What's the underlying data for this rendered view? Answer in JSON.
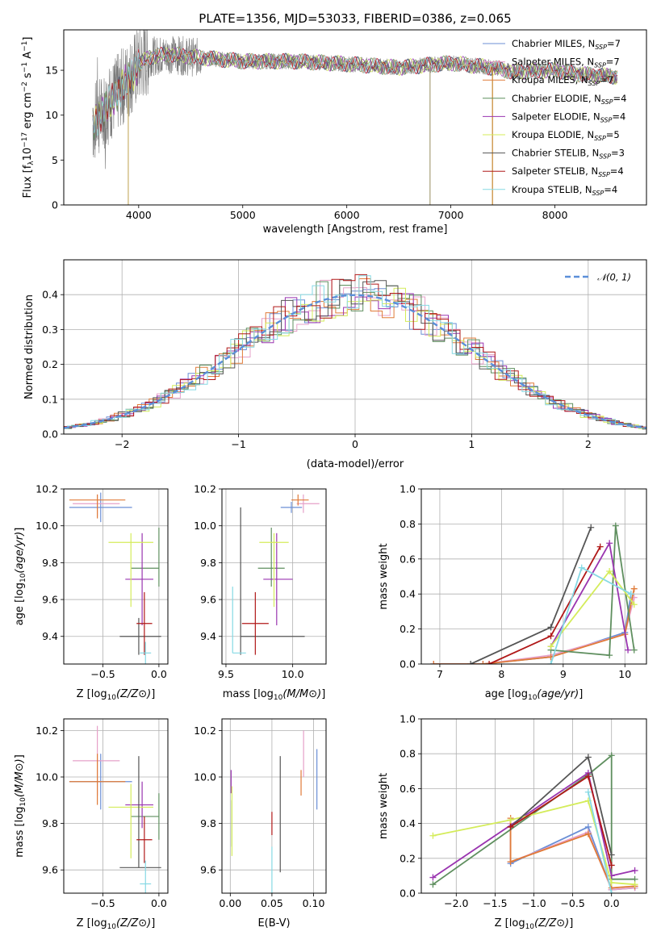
{
  "title": "PLATE=1356, MJD=53033, FIBERID=0386, z=0.065",
  "colors": {
    "chabrier_miles": "#6b8fd6",
    "salpeter_miles": "#e6a0c8",
    "kroupa_miles": "#e07b39",
    "chabrier_elodie": "#5f8f5f",
    "salpeter_elodie": "#9a35b0",
    "kroupa_elodie": "#d4ec5a",
    "chabrier_stelib": "#555555",
    "salpeter_stelib": "#b01818",
    "kroupa_stelib": "#86d9e4"
  },
  "chart_data": [
    {
      "id": "spectrum",
      "type": "line",
      "xlabel": "wavelength [Angstrom, rest frame]",
      "ylabel": "Flux [f_λ10^-17 erg cm^-2 s^-1 A^-1]",
      "xlim": [
        3280,
        8880
      ],
      "ylim": [
        0,
        19.5
      ],
      "xticks": [
        4000,
        5000,
        6000,
        7000,
        8000
      ],
      "yticks": [
        0,
        5,
        10,
        15
      ],
      "grid": false,
      "legend_position": "top-right",
      "legend": [
        {
          "label": "Chabrier MILES, N",
          "sub": "SSP",
          "eq": "=7",
          "color_key": "chabrier_miles"
        },
        {
          "label": "Salpeter MILES, N",
          "sub": "SSP",
          "eq": "=7",
          "color_key": "salpeter_miles"
        },
        {
          "label": "Kroupa MILES, N",
          "sub": "SSP",
          "eq": "=7",
          "color_key": "kroupa_miles"
        },
        {
          "label": "Chabrier ELODIE, N",
          "sub": "SSP",
          "eq": "=4",
          "color_key": "chabrier_elodie"
        },
        {
          "label": "Salpeter ELODIE, N",
          "sub": "SSP",
          "eq": "=4",
          "color_key": "salpeter_elodie"
        },
        {
          "label": "Kroupa ELODIE, N",
          "sub": "SSP",
          "eq": "=5",
          "color_key": "kroupa_elodie"
        },
        {
          "label": "Chabrier STELIB, N",
          "sub": "SSP",
          "eq": "=3",
          "color_key": "chabrier_stelib"
        },
        {
          "label": "Salpeter STELIB, N",
          "sub": "SSP",
          "eq": "=4",
          "color_key": "salpeter_stelib"
        },
        {
          "label": "Kroupa STELIB, N",
          "sub": "SSP",
          "eq": "=4",
          "color_key": "kroupa_stelib"
        }
      ],
      "observed_range": [
        3560,
        8600
      ],
      "continuum": {
        "x": [
          3560,
          3700,
          3900,
          4000,
          4100,
          4300,
          4500,
          5000,
          5500,
          6000,
          6500,
          7000,
          7400,
          7600,
          8000,
          8200,
          8600
        ],
        "y": [
          9,
          11,
          14,
          15.5,
          16.5,
          16.8,
          16.5,
          16.0,
          16.0,
          15.7,
          15.3,
          15.8,
          15.3,
          14.8,
          15.0,
          14.6,
          14.3
        ]
      },
      "spikes_to_zero": [
        3900,
        6800,
        7400
      ]
    },
    {
      "id": "residuals",
      "type": "line",
      "xlabel": "(data-model)/error",
      "ylabel": "Normed distribution",
      "xlim": [
        -2.5,
        2.5
      ],
      "ylim": [
        0,
        0.5
      ],
      "xticks": [
        -2,
        -1,
        0,
        1,
        2
      ],
      "yticks": [
        0.0,
        0.1,
        0.2,
        0.3,
        0.4
      ],
      "grid": true,
      "legend_position": "top-right",
      "legend": [
        {
          "label": "𝒩(0, 1)",
          "color": "#5b8fd9"
        }
      ],
      "gaussian": {
        "mean": 0,
        "sigma": 1
      }
    },
    {
      "id": "age_vs_Z",
      "type": "scatter",
      "xlabel": "Z [log10(Z/Z⊙)]",
      "ylabel": "age [log10(age/yr)]",
      "xlim": [
        -0.85,
        0.08
      ],
      "ylim": [
        9.25,
        10.2
      ],
      "xticks": [
        -0.5,
        0.0
      ],
      "yticks": [
        9.4,
        9.6,
        9.8,
        10.0,
        10.2
      ],
      "grid": true,
      "points": [
        {
          "color_key": "chabrier_miles",
          "x": -0.52,
          "xerr": [
            0.28,
            0.28
          ],
          "y": 10.1,
          "yerr": [
            0.08,
            0.08
          ]
        },
        {
          "color_key": "salpeter_miles",
          "x": -0.55,
          "xerr": [
            0.22,
            0.2
          ],
          "y": 10.12,
          "yerr": [
            0.07,
            0.05
          ]
        },
        {
          "color_key": "kroupa_miles",
          "x": -0.55,
          "xerr": [
            0.25,
            0.25
          ],
          "y": 10.14,
          "yerr": [
            0.1,
            0.03
          ]
        },
        {
          "color_key": "chabrier_elodie",
          "x": 0.0,
          "xerr": [
            0.25,
            0.0
          ],
          "y": 9.77,
          "yerr": [
            0.1,
            0.22
          ]
        },
        {
          "color_key": "salpeter_elodie",
          "x": -0.15,
          "xerr": [
            0.15,
            0.1
          ],
          "y": 9.71,
          "yerr": [
            0.25,
            0.25
          ]
        },
        {
          "color_key": "kroupa_elodie",
          "x": -0.25,
          "xerr": [
            0.2,
            0.2
          ],
          "y": 9.91,
          "yerr": [
            0.35,
            0.05
          ]
        },
        {
          "color_key": "chabrier_stelib",
          "x": -0.18,
          "xerr": [
            0.17,
            0.2
          ],
          "y": 9.4,
          "yerr": [
            0.1,
            0.1
          ]
        },
        {
          "color_key": "salpeter_stelib",
          "x": -0.13,
          "xerr": [
            0.07,
            0.07
          ],
          "y": 9.47,
          "yerr": [
            0.17,
            0.17
          ]
        },
        {
          "color_key": "kroupa_stelib",
          "x": -0.12,
          "xerr": [
            0.05,
            0.05
          ],
          "y": 9.31,
          "yerr": [
            0.06,
            0.06
          ]
        }
      ]
    },
    {
      "id": "age_vs_mass",
      "type": "scatter",
      "xlabel": "mass [log10(M/M⊙)]",
      "xlim": [
        9.47,
        10.25
      ],
      "ylim": [
        9.25,
        10.2
      ],
      "xticks": [
        9.5,
        10.0
      ],
      "yticks": [
        9.4,
        9.6,
        9.8,
        10.0,
        10.2
      ],
      "grid": true,
      "points": [
        {
          "color_key": "chabrier_miles",
          "x": 9.99,
          "xerr": [
            0.08,
            0.08
          ],
          "y": 10.1,
          "yerr": [
            0.03,
            0.03
          ]
        },
        {
          "color_key": "salpeter_miles",
          "x": 10.08,
          "xerr": [
            0.05,
            0.12
          ],
          "y": 10.12,
          "yerr": [
            0.05,
            0.05
          ]
        },
        {
          "color_key": "kroupa_miles",
          "x": 10.04,
          "xerr": [
            0.05,
            0.08
          ],
          "y": 10.14,
          "yerr": [
            0.03,
            0.03
          ]
        },
        {
          "color_key": "chabrier_elodie",
          "x": 9.84,
          "xerr": [
            0.1,
            0.1
          ],
          "y": 9.77,
          "yerr": [
            0.1,
            0.22
          ]
        },
        {
          "color_key": "salpeter_elodie",
          "x": 9.88,
          "xerr": [
            0.1,
            0.12
          ],
          "y": 9.71,
          "yerr": [
            0.25,
            0.25
          ]
        },
        {
          "color_key": "kroupa_elodie",
          "x": 9.86,
          "xerr": [
            0.11,
            0.11
          ],
          "y": 9.91,
          "yerr": [
            0.35,
            0.05
          ]
        },
        {
          "color_key": "chabrier_stelib",
          "x": 9.61,
          "xerr": [
            0.0,
            0.48
          ],
          "y": 9.4,
          "yerr": [
            0.1,
            0.7
          ]
        },
        {
          "color_key": "salpeter_stelib",
          "x": 9.72,
          "xerr": [
            0.1,
            0.1
          ],
          "y": 9.47,
          "yerr": [
            0.17,
            0.17
          ]
        },
        {
          "color_key": "kroupa_stelib",
          "x": 9.55,
          "xerr": [
            0.0,
            0.1
          ],
          "y": 9.31,
          "yerr": [
            0.0,
            0.36
          ]
        }
      ]
    },
    {
      "id": "weight_vs_age",
      "type": "line",
      "xlabel": "age [log10(age/yr)]",
      "ylabel": "mass weight",
      "xlim": [
        6.7,
        10.35
      ],
      "ylim": [
        0,
        1.0
      ],
      "xticks": [
        7,
        8,
        9,
        10
      ],
      "yticks": [
        0.0,
        0.2,
        0.4,
        0.6,
        0.8,
        1.0
      ],
      "grid": true,
      "series": [
        {
          "color_key": "chabrier_miles",
          "x": [
            6.9,
            7.7,
            8.8,
            10.0,
            10.1
          ],
          "y": [
            0.0,
            0.0,
            0.04,
            0.18,
            0.4
          ]
        },
        {
          "color_key": "salpeter_miles",
          "x": [
            6.9,
            7.7,
            8.8,
            10.0,
            10.15
          ],
          "y": [
            0.0,
            0.0,
            0.05,
            0.17,
            0.38
          ]
        },
        {
          "color_key": "kroupa_miles",
          "x": [
            6.9,
            7.7,
            8.8,
            10.0,
            10.15
          ],
          "y": [
            0.0,
            0.0,
            0.04,
            0.17,
            0.43
          ]
        },
        {
          "color_key": "chabrier_elodie",
          "x": [
            8.8,
            9.75,
            9.85,
            10.15
          ],
          "y": [
            0.08,
            0.05,
            0.79,
            0.08
          ]
        },
        {
          "color_key": "salpeter_elodie",
          "x": [
            8.8,
            9.75,
            10.05
          ],
          "y": [
            0.1,
            0.69,
            0.08
          ]
        },
        {
          "color_key": "kroupa_elodie",
          "x": [
            8.8,
            9.75,
            10.15
          ],
          "y": [
            0.1,
            0.53,
            0.34
          ]
        },
        {
          "color_key": "chabrier_stelib",
          "x": [
            7.5,
            8.8,
            9.45
          ],
          "y": [
            0.0,
            0.21,
            0.78
          ]
        },
        {
          "color_key": "salpeter_stelib",
          "x": [
            7.8,
            8.8,
            9.6
          ],
          "y": [
            0.0,
            0.16,
            0.67
          ]
        },
        {
          "color_key": "kroupa_stelib",
          "x": [
            8.8,
            9.3,
            10.1
          ],
          "y": [
            0.0,
            0.55,
            0.4
          ]
        }
      ]
    },
    {
      "id": "mass_vs_Z",
      "type": "scatter",
      "xlabel": "Z [log10(Z/Z⊙)]",
      "ylabel": "mass [log10(M/M⊙)]",
      "xlim": [
        -0.85,
        0.08
      ],
      "ylim": [
        9.5,
        10.25
      ],
      "xticks": [
        -0.5,
        0.0
      ],
      "yticks": [
        9.6,
        9.8,
        10.0,
        10.2
      ],
      "grid": true,
      "points": [
        {
          "color_key": "chabrier_miles",
          "x": -0.52,
          "xerr": [
            0.28,
            0.28
          ],
          "y": 9.98,
          "yerr": [
            0.12,
            0.12
          ]
        },
        {
          "color_key": "salpeter_miles",
          "x": -0.55,
          "xerr": [
            0.22,
            0.2
          ],
          "y": 10.07,
          "yerr": [
            0.15,
            0.15
          ]
        },
        {
          "color_key": "kroupa_miles",
          "x": -0.55,
          "xerr": [
            0.25,
            0.25
          ],
          "y": 9.98,
          "yerr": [
            0.1,
            0.12
          ]
        },
        {
          "color_key": "chabrier_elodie",
          "x": 0.0,
          "xerr": [
            0.25,
            0.0
          ],
          "y": 9.83,
          "yerr": [
            0.1,
            0.1
          ]
        },
        {
          "color_key": "salpeter_elodie",
          "x": -0.15,
          "xerr": [
            0.15,
            0.1
          ],
          "y": 9.88,
          "yerr": [
            0.1,
            0.1
          ]
        },
        {
          "color_key": "kroupa_elodie",
          "x": -0.25,
          "xerr": [
            0.2,
            0.2
          ],
          "y": 9.87,
          "yerr": [
            0.22,
            0.1
          ]
        },
        {
          "color_key": "chabrier_stelib",
          "x": -0.18,
          "xerr": [
            0.17,
            0.2
          ],
          "y": 9.61,
          "yerr": [
            0.0,
            0.48
          ]
        },
        {
          "color_key": "salpeter_stelib",
          "x": -0.13,
          "xerr": [
            0.07,
            0.07
          ],
          "y": 9.73,
          "yerr": [
            0.1,
            0.1
          ]
        },
        {
          "color_key": "kroupa_stelib",
          "x": -0.12,
          "xerr": [
            0.05,
            0.05
          ],
          "y": 9.54,
          "yerr": [
            0.04,
            0.1
          ]
        }
      ]
    },
    {
      "id": "mass_vs_ebv",
      "type": "scatter",
      "xlabel": "E(B-V)",
      "xlim": [
        -0.01,
        0.115
      ],
      "ylim": [
        9.5,
        10.25
      ],
      "xticks": [
        0.0,
        0.05,
        0.1
      ],
      "xticklabels": [
        "0.00",
        "0.05",
        "0.10"
      ],
      "yticks": [
        9.6,
        9.8,
        10.0,
        10.2
      ],
      "grid": true,
      "points": [
        {
          "color_key": "chabrier_miles",
          "x": 0.104,
          "y": 9.98,
          "yerr": [
            0.12,
            0.14
          ]
        },
        {
          "color_key": "salpeter_miles",
          "x": 0.088,
          "y": 10.1,
          "yerr": [
            0.1,
            0.1
          ]
        },
        {
          "color_key": "kroupa_miles",
          "x": 0.085,
          "y": 9.98,
          "yerr": [
            0.06,
            0.05
          ]
        },
        {
          "color_key": "chabrier_elodie",
          "x": 0.002,
          "y": 9.8,
          "yerr": [
            0.1,
            0.1
          ]
        },
        {
          "color_key": "salpeter_elodie",
          "x": 0.001,
          "y": 9.98,
          "yerr": [
            0.05,
            0.05
          ]
        },
        {
          "color_key": "kroupa_elodie",
          "x": 0.002,
          "y": 9.86,
          "yerr": [
            0.2,
            0.1
          ]
        },
        {
          "color_key": "chabrier_stelib",
          "x": 0.06,
          "y": 9.8,
          "yerr": [
            0.21,
            0.29
          ]
        },
        {
          "color_key": "salpeter_stelib",
          "x": 0.05,
          "y": 9.8,
          "yerr": [
            0.05,
            0.05
          ]
        },
        {
          "color_key": "kroupa_stelib",
          "x": 0.05,
          "y": 9.6,
          "yerr": [
            0.1,
            0.1
          ]
        }
      ]
    },
    {
      "id": "weight_vs_Z",
      "type": "line",
      "xlabel": "Z [log10(Z/Z⊙)]",
      "ylabel": "mass weight",
      "xlim": [
        -2.45,
        0.45
      ],
      "ylim": [
        0,
        1.0
      ],
      "xticks": [
        -2.0,
        -1.5,
        -1.0,
        -0.5,
        0.0
      ],
      "yticks": [
        0.0,
        0.2,
        0.4,
        0.6,
        0.8,
        1.0
      ],
      "grid": true,
      "series": [
        {
          "color_key": "chabrier_miles",
          "x": [
            -1.3,
            -1.3,
            -0.3,
            0.0,
            0.3
          ],
          "y": [
            0.4,
            0.17,
            0.38,
            0.02,
            0.03
          ]
        },
        {
          "color_key": "salpeter_miles",
          "x": [
            -1.3,
            -1.3,
            -0.3,
            0.0,
            0.3
          ],
          "y": [
            0.4,
            0.18,
            0.35,
            0.02,
            0.03
          ]
        },
        {
          "color_key": "kroupa_miles",
          "x": [
            -1.3,
            -1.3,
            -0.3,
            0.0,
            0.3
          ],
          "y": [
            0.43,
            0.18,
            0.34,
            0.03,
            0.04
          ]
        },
        {
          "color_key": "chabrier_elodie",
          "x": [
            -2.3,
            -0.3,
            0.0,
            0.0,
            0.3
          ],
          "y": [
            0.05,
            0.68,
            0.79,
            0.08,
            0.08
          ]
        },
        {
          "color_key": "salpeter_elodie",
          "x": [
            -2.3,
            -0.3,
            0.0,
            0.3
          ],
          "y": [
            0.09,
            0.69,
            0.1,
            0.13
          ]
        },
        {
          "color_key": "kroupa_elodie",
          "x": [
            -2.3,
            -1.3,
            -0.3,
            0.0,
            0.3
          ],
          "y": [
            0.33,
            0.42,
            0.53,
            0.06,
            0.05
          ]
        },
        {
          "color_key": "chabrier_stelib",
          "x": [
            -1.3,
            -0.3,
            0.0
          ],
          "y": [
            0.38,
            0.78,
            0.22
          ]
        },
        {
          "color_key": "salpeter_stelib",
          "x": [
            -1.3,
            -0.3,
            0.0
          ],
          "y": [
            0.38,
            0.67,
            0.16
          ]
        },
        {
          "color_key": "kroupa_stelib",
          "x": [
            -0.3,
            0.0
          ],
          "y": [
            0.58,
            0.0
          ]
        }
      ]
    }
  ]
}
